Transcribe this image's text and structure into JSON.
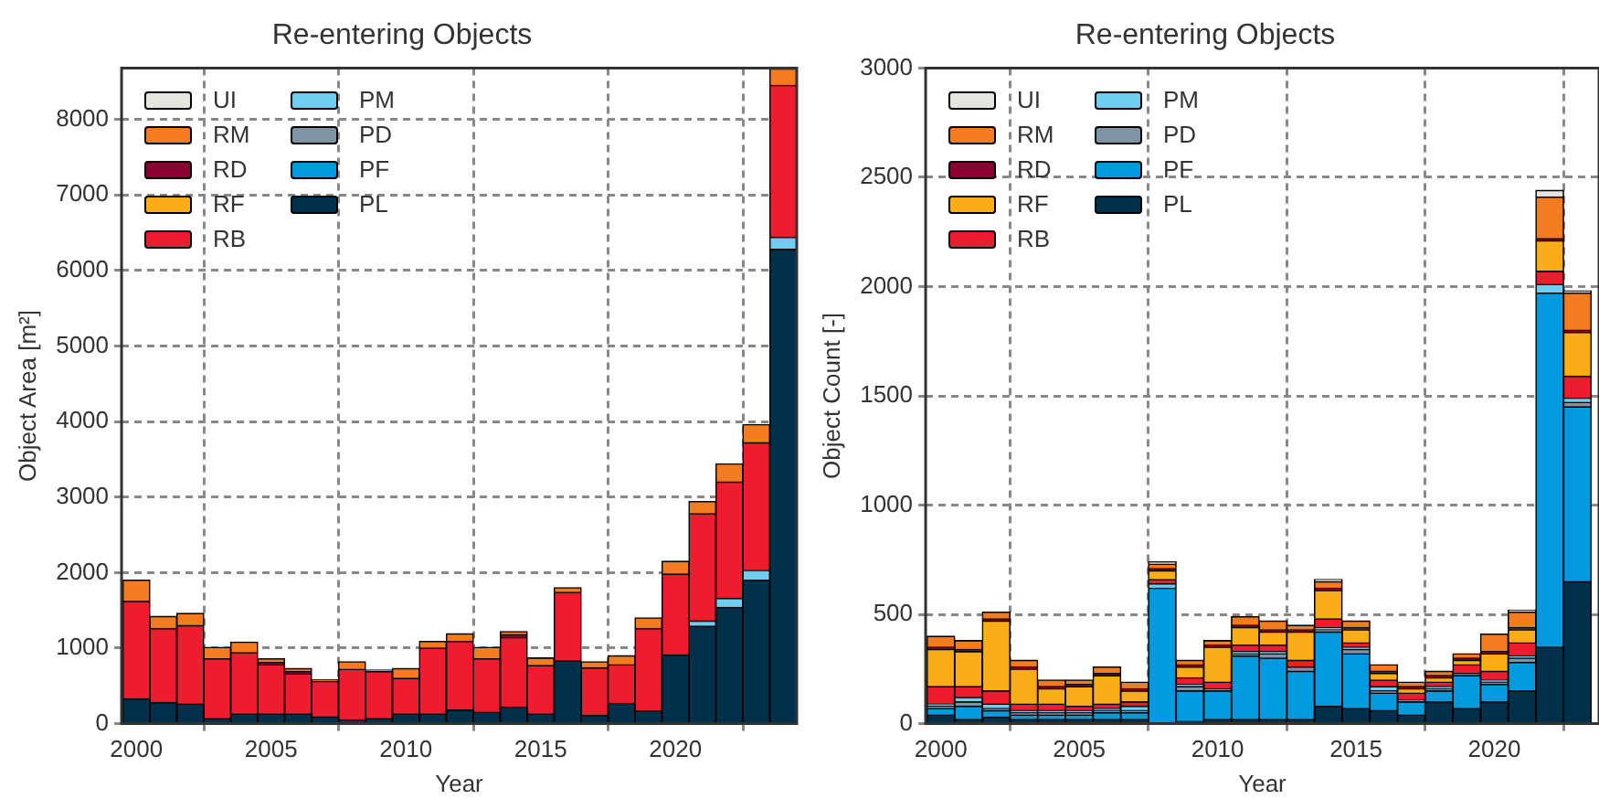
{
  "chart_data": [
    {
      "type": "bar",
      "title": "Re-entering Objects",
      "xlabel": "Year",
      "ylabel": "Object Area [m²]",
      "stacked": true,
      "grid": true,
      "legend": "top left",
      "x": [
        2000,
        2001,
        2002,
        2003,
        2004,
        2005,
        2006,
        2007,
        2008,
        2009,
        2010,
        2011,
        2012,
        2013,
        2014,
        2015,
        2016,
        2017,
        2018,
        2019,
        2020,
        2021,
        2022,
        2023,
        2024
      ],
      "xlim": [
        1999.45,
        2024.5
      ],
      "xticks": [
        2000,
        2005,
        2010,
        2015,
        2020
      ],
      "ylim": [
        0,
        8680
      ],
      "yticks": [
        0,
        1000,
        2000,
        3000,
        4000,
        5000,
        6000,
        7000,
        8000
      ],
      "series": [
        {
          "name": "PL",
          "color": "#00304a",
          "values": [
            330,
            280,
            260,
            70,
            130,
            130,
            130,
            90,
            50,
            70,
            130,
            130,
            180,
            150,
            220,
            130,
            830,
            110,
            270,
            170,
            910,
            1290,
            1540,
            1900,
            6280
          ]
        },
        {
          "name": "PF",
          "color": "#009ade",
          "values": [
            null,
            null,
            null,
            null,
            null,
            null,
            null,
            null,
            null,
            null,
            null,
            null,
            null,
            null,
            null,
            null,
            null,
            null,
            null,
            null,
            null,
            null,
            null,
            null,
            null
          ]
        },
        {
          "name": "PD",
          "color": "#7f95a5",
          "values": [
            null,
            null,
            null,
            null,
            null,
            null,
            null,
            null,
            null,
            null,
            null,
            null,
            null,
            null,
            null,
            null,
            null,
            null,
            null,
            null,
            null,
            null,
            null,
            null,
            null
          ]
        },
        {
          "name": "PM",
          "color": "#6fcdf0",
          "values": [
            null,
            null,
            null,
            null,
            null,
            null,
            null,
            null,
            null,
            null,
            null,
            null,
            null,
            null,
            null,
            null,
            null,
            null,
            null,
            null,
            null,
            70,
            120,
            130,
            160
          ]
        },
        {
          "name": "RB",
          "color": "#ed1c2e",
          "values": [
            1290,
            980,
            1040,
            790,
            810,
            650,
            530,
            470,
            670,
            620,
            470,
            870,
            910,
            710,
            920,
            640,
            910,
            630,
            510,
            1090,
            1070,
            1420,
            1540,
            1690,
            2010
          ]
        },
        {
          "name": "RF",
          "color": "#fbad18",
          "values": [
            null,
            null,
            null,
            null,
            null,
            null,
            null,
            null,
            null,
            null,
            null,
            null,
            null,
            null,
            null,
            null,
            null,
            null,
            null,
            null,
            null,
            null,
            null,
            null,
            null
          ]
        },
        {
          "name": "RD",
          "color": "#8b0030",
          "values": [
            null,
            null,
            null,
            null,
            null,
            30,
            30,
            null,
            null,
            null,
            null,
            null,
            null,
            null,
            40,
            null,
            null,
            null,
            null,
            null,
            null,
            null,
            null,
            null,
            null
          ]
        },
        {
          "name": "RM",
          "color": "#f47c20",
          "values": [
            280,
            160,
            160,
            150,
            140,
            50,
            40,
            20,
            100,
            20,
            130,
            90,
            100,
            150,
            40,
            100,
            60,
            80,
            120,
            140,
            170,
            160,
            240,
            240,
            220
          ]
        },
        {
          "name": "UI",
          "color": "#e5e5e0",
          "values": [
            null,
            null,
            null,
            null,
            null,
            null,
            null,
            null,
            null,
            null,
            null,
            null,
            null,
            null,
            null,
            null,
            null,
            null,
            null,
            null,
            null,
            null,
            null,
            null,
            null
          ]
        }
      ]
    },
    {
      "type": "bar",
      "title": "Re-entering Objects",
      "xlabel": "Year",
      "ylabel": "Object Count [-]",
      "stacked": true,
      "grid": true,
      "legend": "top left",
      "x": [
        2000,
        2001,
        2002,
        2003,
        2004,
        2005,
        2006,
        2007,
        2008,
        2009,
        2010,
        2011,
        2012,
        2013,
        2014,
        2015,
        2016,
        2017,
        2018,
        2019,
        2020,
        2021,
        2022,
        2023
      ],
      "xlim": [
        1999.45,
        2023.78
      ],
      "xticks": [
        2000,
        2005,
        2010,
        2015,
        2020
      ],
      "ylim": [
        0,
        3000
      ],
      "yticks": [
        0,
        500,
        1000,
        1500,
        2000,
        2500,
        3000
      ],
      "series": [
        {
          "name": "PL",
          "color": "#00304a",
          "values": [
            40,
            20,
            30,
            20,
            20,
            20,
            20,
            20,
            null,
            10,
            20,
            20,
            20,
            20,
            80,
            70,
            60,
            40,
            100,
            70,
            100,
            150,
            350,
            650
          ]
        },
        {
          "name": "PF",
          "color": "#009ade",
          "values": [
            30,
            60,
            30,
            20,
            20,
            20,
            30,
            30,
            620,
            140,
            130,
            290,
            280,
            220,
            340,
            250,
            80,
            60,
            50,
            150,
            80,
            130,
            1620,
            800
          ]
        },
        {
          "name": "PD",
          "color": "#7f95a5",
          "values": [
            10,
            20,
            10,
            10,
            10,
            10,
            10,
            10,
            null,
            20,
            10,
            10,
            20,
            20,
            10,
            20,
            10,
            10,
            10,
            10,
            10,
            20,
            null,
            20
          ]
        },
        {
          "name": "PM",
          "color": "#6fcdf0",
          "values": [
            10,
            20,
            20,
            10,
            10,
            10,
            10,
            20,
            20,
            10,
            null,
            10,
            10,
            null,
            10,
            10,
            20,
            null,
            10,
            null,
            10,
            10,
            40,
            20
          ]
        },
        {
          "name": "RB",
          "color": "#ed1c2e",
          "values": [
            80,
            50,
            60,
            30,
            30,
            20,
            20,
            20,
            20,
            30,
            30,
            30,
            30,
            30,
            40,
            20,
            30,
            30,
            20,
            40,
            40,
            60,
            60,
            100
          ]
        },
        {
          "name": "RF",
          "color": "#fbad18",
          "values": [
            170,
            160,
            320,
            160,
            70,
            90,
            130,
            50,
            40,
            50,
            160,
            80,
            60,
            130,
            130,
            60,
            30,
            20,
            20,
            20,
            80,
            60,
            140,
            200
          ]
        },
        {
          "name": "RD",
          "color": "#8b0030",
          "values": [
            10,
            10,
            10,
            10,
            10,
            10,
            10,
            10,
            10,
            10,
            10,
            10,
            10,
            10,
            10,
            10,
            10,
            10,
            10,
            10,
            10,
            10,
            10,
            10
          ]
        },
        {
          "name": "RM",
          "color": "#f47c20",
          "values": [
            50,
            40,
            30,
            30,
            30,
            20,
            30,
            30,
            20,
            20,
            20,
            40,
            40,
            20,
            30,
            30,
            30,
            20,
            20,
            20,
            80,
            70,
            190,
            170
          ]
        },
        {
          "name": "UI",
          "color": "#e5e5e0",
          "values": [
            null,
            null,
            null,
            null,
            null,
            null,
            null,
            null,
            10,
            null,
            null,
            null,
            null,
            null,
            10,
            null,
            null,
            null,
            null,
            null,
            null,
            10,
            30,
            10
          ]
        }
      ]
    }
  ]
}
